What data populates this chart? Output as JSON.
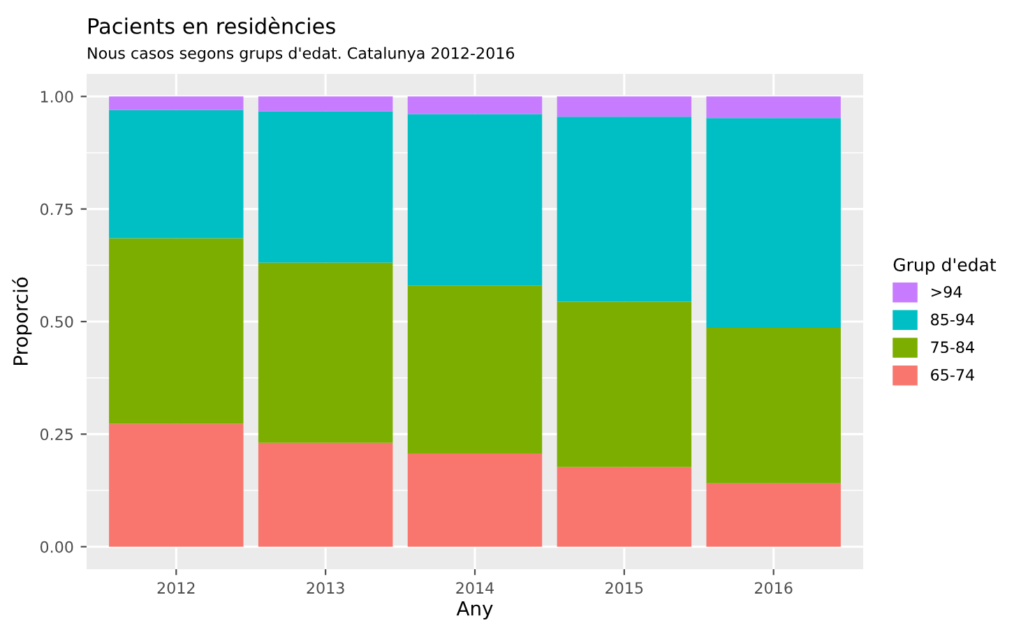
{
  "chart_data": {
    "type": "bar",
    "title": "Pacients en residències",
    "subtitle": "Nous casos segons grups d'edat. Catalunya 2012-2016",
    "xlabel": "Any",
    "ylabel": "Proporció",
    "legend_title": "Grup d'edat",
    "categories": [
      "2012",
      "2013",
      "2014",
      "2015",
      "2016"
    ],
    "stacked": true,
    "series": [
      {
        "name": "65-74",
        "color": "#f8766d",
        "values": [
          0.273,
          0.231,
          0.207,
          0.177,
          0.141
        ]
      },
      {
        "name": "75-84",
        "color": "#7cae00",
        "values": [
          0.412,
          0.4,
          0.373,
          0.367,
          0.345
        ]
      },
      {
        "name": "85-94",
        "color": "#00bfc4",
        "values": [
          0.285,
          0.336,
          0.381,
          0.411,
          0.466
        ]
      },
      {
        "name": ">94",
        "color": "#c77cff",
        "values": [
          0.03,
          0.033,
          0.039,
          0.045,
          0.048
        ]
      }
    ],
    "ylim": [
      -0.05,
      1.05
    ],
    "yticks": [
      {
        "value": 0,
        "label": "0.00"
      },
      {
        "value": 0.25,
        "label": "0.25"
      },
      {
        "value": 0.5,
        "label": "0.50"
      },
      {
        "value": 0.75,
        "label": "0.75"
      },
      {
        "value": 1,
        "label": "1.00"
      }
    ],
    "grid": true,
    "legend": "right"
  }
}
